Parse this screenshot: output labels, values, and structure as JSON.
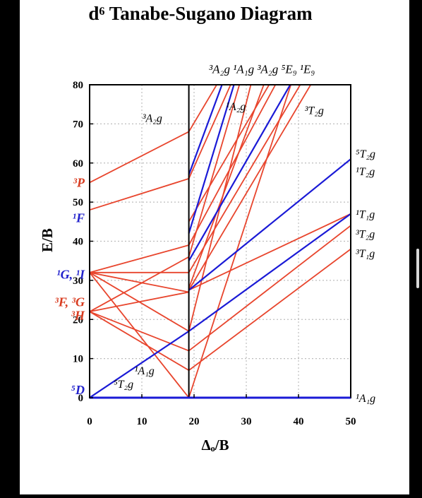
{
  "chart_data": {
    "type": "line",
    "title": "d⁶ Tanabe-Sugano Diagram",
    "xlabel": "Δₒ/B",
    "ylabel": "E/B",
    "xlim": [
      0,
      50
    ],
    "ylim": [
      0,
      80
    ],
    "x_ticks": [
      "0",
      "10",
      "20",
      "30",
      "40",
      "50"
    ],
    "y_ticks": [
      "0",
      "10",
      "20",
      "30",
      "40",
      "50",
      "60",
      "70",
      "80"
    ],
    "grid": true,
    "spin_crossover": 19,
    "colors": {
      "high_spin": "#1a1ad6",
      "red": "#e8452d",
      "term_red": "#d83b1f",
      "term_blue": "#2222cc"
    },
    "left_term_labels": [
      {
        "text": "⁵D",
        "color": "term_blue",
        "y": 2
      },
      {
        "text": "³H",
        "color": "term_red",
        "y": 21
      },
      {
        "text": "³F, ³G",
        "color": "term_red",
        "y": 24.5
      },
      {
        "text": "¹G, ¹I",
        "color": "term_blue",
        "y": 31.5
      },
      {
        "text": "¹F",
        "color": "term_blue",
        "y": 46
      },
      {
        "text": "³P",
        "color": "term_red",
        "y": 55
      }
    ],
    "right_term_labels": [
      {
        "text": "¹A₁g",
        "y": 0
      },
      {
        "text": "³T₁g",
        "y": 37
      },
      {
        "text": "³T₂g",
        "y": 42
      },
      {
        "text": "¹T₁g",
        "y": 47
      },
      {
        "text": "¹T₂g",
        "y": 58
      },
      {
        "text": "⁵T₂g",
        "y": 62.5
      }
    ],
    "curve_labels": [
      {
        "text": "³A₂g",
        "x": 12,
        "y": 70.5
      },
      {
        "text": "¹A₁g",
        "x": 10.5,
        "y": 6
      },
      {
        "text": "⁵T₂g",
        "x": 6.5,
        "y": 2.5
      },
      {
        "text": "¹A₂g",
        "x": 28,
        "y": 73.5
      },
      {
        "text": "³T₂g",
        "x": 43,
        "y": 72.5
      },
      {
        "text": "³A₂g ¹A₁g ³A₂g ⁵E₉ ¹E₉",
        "x": 33,
        "y": 83
      }
    ],
    "series": [
      {
        "color": "high_spin",
        "x": [
          0,
          50
        ],
        "y": [
          0,
          0
        ]
      },
      {
        "color": "high_spin",
        "x": [
          0,
          19,
          50
        ],
        "y": [
          0,
          17,
          47
        ]
      },
      {
        "color": "high_spin",
        "x": [
          19,
          50
        ],
        "y": [
          27.5,
          61
        ]
      },
      {
        "color": "high_spin",
        "x": [
          19,
          29
        ],
        "y": [
          42,
          86
        ]
      },
      {
        "color": "high_spin",
        "x": [
          19,
          27
        ],
        "y": [
          57,
          86
        ]
      },
      {
        "color": "high_spin",
        "x": [
          19,
          41
        ],
        "y": [
          35,
          86
        ]
      },
      {
        "color": "red",
        "x": [
          0,
          19
        ],
        "y": [
          55,
          68
        ]
      },
      {
        "color": "red",
        "x": [
          0,
          19
        ],
        "y": [
          48,
          56
        ]
      },
      {
        "color": "red",
        "x": [
          0,
          19
        ],
        "y": [
          32,
          39
        ]
      },
      {
        "color": "red",
        "x": [
          0,
          19
        ],
        "y": [
          32,
          32
        ]
      },
      {
        "color": "red",
        "x": [
          0,
          19
        ],
        "y": [
          32,
          27
        ]
      },
      {
        "color": "red",
        "x": [
          0,
          19
        ],
        "y": [
          32,
          17
        ]
      },
      {
        "color": "red",
        "x": [
          0,
          19
        ],
        "y": [
          32,
          0
        ]
      },
      {
        "color": "red",
        "x": [
          0,
          19
        ],
        "y": [
          22,
          36
        ]
      },
      {
        "color": "red",
        "x": [
          0,
          19
        ],
        "y": [
          22,
          27
        ]
      },
      {
        "color": "red",
        "x": [
          0,
          19
        ],
        "y": [
          22,
          12
        ]
      },
      {
        "color": "red",
        "x": [
          0,
          19
        ],
        "y": [
          22,
          7
        ]
      },
      {
        "color": "red",
        "x": [
          19,
          50
        ],
        "y": [
          0,
          0
        ]
      },
      {
        "color": "red",
        "x": [
          19,
          50
        ],
        "y": [
          27.5,
          47
        ]
      },
      {
        "color": "red",
        "x": [
          19,
          50
        ],
        "y": [
          12,
          44
        ]
      },
      {
        "color": "red",
        "x": [
          19,
          50
        ],
        "y": [
          7,
          38
        ]
      },
      {
        "color": "red",
        "x": [
          19,
          40
        ],
        "y": [
          0,
          86
        ]
      },
      {
        "color": "red",
        "x": [
          19,
          32
        ],
        "y": [
          17,
          86
        ]
      },
      {
        "color": "red",
        "x": [
          19,
          35
        ],
        "y": [
          28,
          86
        ]
      },
      {
        "color": "red",
        "x": [
          19,
          38
        ],
        "y": [
          39,
          86
        ]
      },
      {
        "color": "red",
        "x": [
          19,
          30
        ],
        "y": [
          36,
          86
        ]
      },
      {
        "color": "red",
        "x": [
          19,
          29
        ],
        "y": [
          56,
          86
        ]
      },
      {
        "color": "red",
        "x": [
          19,
          27
        ],
        "y": [
          68,
          86
        ]
      },
      {
        "color": "red",
        "x": [
          19,
          43
        ],
        "y": [
          32,
          86
        ]
      },
      {
        "color": "red",
        "x": [
          19,
          45
        ],
        "y": [
          27.5,
          86
        ]
      },
      {
        "color": "red",
        "x": [
          19,
          37
        ],
        "y": [
          45,
          86
        ]
      }
    ]
  }
}
